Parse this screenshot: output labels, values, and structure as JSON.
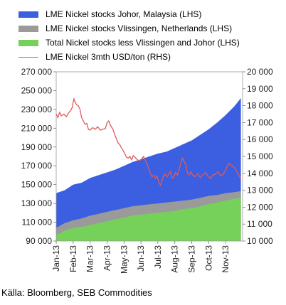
{
  "chart_data": {
    "type": "area",
    "x_categories": [
      "Jan-13",
      "Feb-13",
      "Mar-13",
      "Apr-13",
      "May-13",
      "Jun-13",
      "Jul-13",
      "Aug-13",
      "Sep-13",
      "Oct-13",
      "Nov-13"
    ],
    "left_axis": {
      "ylim": [
        90000,
        270000
      ],
      "ticks": [
        "90 000",
        "110 000",
        "130 000",
        "150 000",
        "170 000",
        "190 000",
        "210 000",
        "230 000",
        "250 000",
        "270 000"
      ]
    },
    "right_axis": {
      "ylim": [
        10000,
        20000
      ],
      "ticks": [
        "10 000",
        "11 000",
        "12 000",
        "13 000",
        "14 000",
        "15 000",
        "16 000",
        "17 000",
        "18 000",
        "19 000",
        "20 000"
      ]
    },
    "series": [
      {
        "name": "LME Nickel stocks Johor, Malaysia (LHS)",
        "color": "#3b5fe0",
        "axis": "left",
        "kind": "stacked-top",
        "points": [
          [
            0,
            141000
          ],
          [
            0.5,
            144000
          ],
          [
            1,
            150000
          ],
          [
            1.5,
            152000
          ],
          [
            2,
            157000
          ],
          [
            2.5,
            160000
          ],
          [
            3,
            163000
          ],
          [
            3.5,
            166000
          ],
          [
            4,
            170000
          ],
          [
            4.5,
            174000
          ],
          [
            5,
            177000
          ],
          [
            5.5,
            180000
          ],
          [
            6,
            183000
          ],
          [
            6.5,
            185000
          ],
          [
            7,
            189000
          ],
          [
            7.5,
            193000
          ],
          [
            8,
            197000
          ],
          [
            8.5,
            203000
          ],
          [
            9,
            209000
          ],
          [
            9.5,
            216000
          ],
          [
            10,
            224000
          ],
          [
            10.5,
            233000
          ],
          [
            10.9,
            242000
          ]
        ]
      },
      {
        "name": "LME Nickel stocks Vlissingen, Netherlands (LHS)",
        "color": "#9a9a9a",
        "axis": "left",
        "kind": "stacked-mid",
        "points": [
          [
            0,
            104000
          ],
          [
            0.5,
            109000
          ],
          [
            1,
            112000
          ],
          [
            1.5,
            114000
          ],
          [
            2,
            117000
          ],
          [
            2.5,
            119000
          ],
          [
            3,
            121000
          ],
          [
            3.5,
            123000
          ],
          [
            4,
            125000
          ],
          [
            4.5,
            127000
          ],
          [
            5,
            128000
          ],
          [
            5.5,
            129000
          ],
          [
            6,
            130000
          ],
          [
            6.5,
            131000
          ],
          [
            7,
            132000
          ],
          [
            7.5,
            133000
          ],
          [
            8,
            134000
          ],
          [
            8.5,
            136000
          ],
          [
            9,
            138000
          ],
          [
            9.5,
            139000
          ],
          [
            10,
            141000
          ],
          [
            10.5,
            142000
          ],
          [
            10.9,
            143000
          ]
        ]
      },
      {
        "name": "Total Nickel stocks less Vlissingen and Johor (LHS)",
        "color": "#76d15a",
        "axis": "left",
        "kind": "stacked-bottom",
        "points": [
          [
            0,
            96000
          ],
          [
            0.5,
            101000
          ],
          [
            1,
            104000
          ],
          [
            1.5,
            105000
          ],
          [
            2,
            107000
          ],
          [
            2.5,
            109000
          ],
          [
            3,
            111000
          ],
          [
            3.5,
            113000
          ],
          [
            4,
            115000
          ],
          [
            4.5,
            117000
          ],
          [
            5,
            118000
          ],
          [
            5.5,
            119000
          ],
          [
            6,
            120000
          ],
          [
            6.5,
            121000
          ],
          [
            7,
            122000
          ],
          [
            7.5,
            124000
          ],
          [
            8,
            125000
          ],
          [
            8.5,
            127000
          ],
          [
            9,
            129000
          ],
          [
            9.5,
            131000
          ],
          [
            10,
            133000
          ],
          [
            10.5,
            135000
          ],
          [
            10.9,
            136000
          ]
        ]
      },
      {
        "name": "LME Nickel 3mth USD/ton (RHS)",
        "color": "#e05a5a",
        "axis": "right",
        "kind": "line",
        "points": [
          [
            0,
            17500
          ],
          [
            0.1,
            17300
          ],
          [
            0.2,
            17600
          ],
          [
            0.3,
            17400
          ],
          [
            0.45,
            17500
          ],
          [
            0.6,
            17350
          ],
          [
            0.75,
            17600
          ],
          [
            0.85,
            17700
          ],
          [
            0.95,
            17900
          ],
          [
            1.0,
            18200
          ],
          [
            1.05,
            18400
          ],
          [
            1.12,
            18200
          ],
          [
            1.2,
            18050
          ],
          [
            1.3,
            18000
          ],
          [
            1.4,
            17800
          ],
          [
            1.5,
            17300
          ],
          [
            1.6,
            17100
          ],
          [
            1.7,
            16900
          ],
          [
            1.8,
            16950
          ],
          [
            1.9,
            16600
          ],
          [
            2.0,
            16550
          ],
          [
            2.15,
            16700
          ],
          [
            2.3,
            16600
          ],
          [
            2.45,
            16750
          ],
          [
            2.6,
            16550
          ],
          [
            2.75,
            16600
          ],
          [
            2.9,
            16650
          ],
          [
            3.0,
            17000
          ],
          [
            3.1,
            17100
          ],
          [
            3.2,
            16850
          ],
          [
            3.35,
            16600
          ],
          [
            3.45,
            16300
          ],
          [
            3.55,
            16050
          ],
          [
            3.65,
            15800
          ],
          [
            3.75,
            15700
          ],
          [
            3.85,
            15500
          ],
          [
            3.95,
            15350
          ],
          [
            4.05,
            15150
          ],
          [
            4.15,
            14950
          ],
          [
            4.25,
            14900
          ],
          [
            4.35,
            15000
          ],
          [
            4.45,
            14800
          ],
          [
            4.55,
            15050
          ],
          [
            4.7,
            14900
          ],
          [
            4.85,
            14750
          ],
          [
            5.0,
            14800
          ],
          [
            5.15,
            15000
          ],
          [
            5.25,
            14800
          ],
          [
            5.35,
            14600
          ],
          [
            5.45,
            14300
          ],
          [
            5.55,
            14000
          ],
          [
            5.65,
            13800
          ],
          [
            5.75,
            13900
          ],
          [
            5.85,
            13700
          ],
          [
            5.95,
            13850
          ],
          [
            6.05,
            13500
          ],
          [
            6.15,
            13300
          ],
          [
            6.25,
            13600
          ],
          [
            6.35,
            13900
          ],
          [
            6.45,
            13950
          ],
          [
            6.55,
            13800
          ],
          [
            6.65,
            13950
          ],
          [
            6.75,
            14100
          ],
          [
            6.85,
            13700
          ],
          [
            6.95,
            13800
          ],
          [
            7.05,
            14050
          ],
          [
            7.15,
            13900
          ],
          [
            7.25,
            14200
          ],
          [
            7.35,
            14600
          ],
          [
            7.45,
            14900
          ],
          [
            7.55,
            14700
          ],
          [
            7.65,
            14500
          ],
          [
            7.75,
            14000
          ],
          [
            7.85,
            13900
          ],
          [
            7.95,
            14100
          ],
          [
            8.05,
            13900
          ],
          [
            8.2,
            13800
          ],
          [
            8.35,
            14000
          ],
          [
            8.5,
            13750
          ],
          [
            8.65,
            13900
          ],
          [
            8.8,
            14050
          ],
          [
            8.95,
            13850
          ],
          [
            9.1,
            13700
          ],
          [
            9.25,
            13900
          ],
          [
            9.4,
            13950
          ],
          [
            9.55,
            14100
          ],
          [
            9.7,
            13850
          ],
          [
            9.85,
            13950
          ],
          [
            10.0,
            14200
          ],
          [
            10.1,
            14450
          ],
          [
            10.2,
            14600
          ],
          [
            10.3,
            14500
          ],
          [
            10.45,
            14400
          ],
          [
            10.55,
            14300
          ],
          [
            10.7,
            14050
          ],
          [
            10.8,
            13850
          ],
          [
            10.9,
            13650
          ]
        ]
      }
    ],
    "source": "Källa: Bloomberg, SEB Commodities"
  }
}
